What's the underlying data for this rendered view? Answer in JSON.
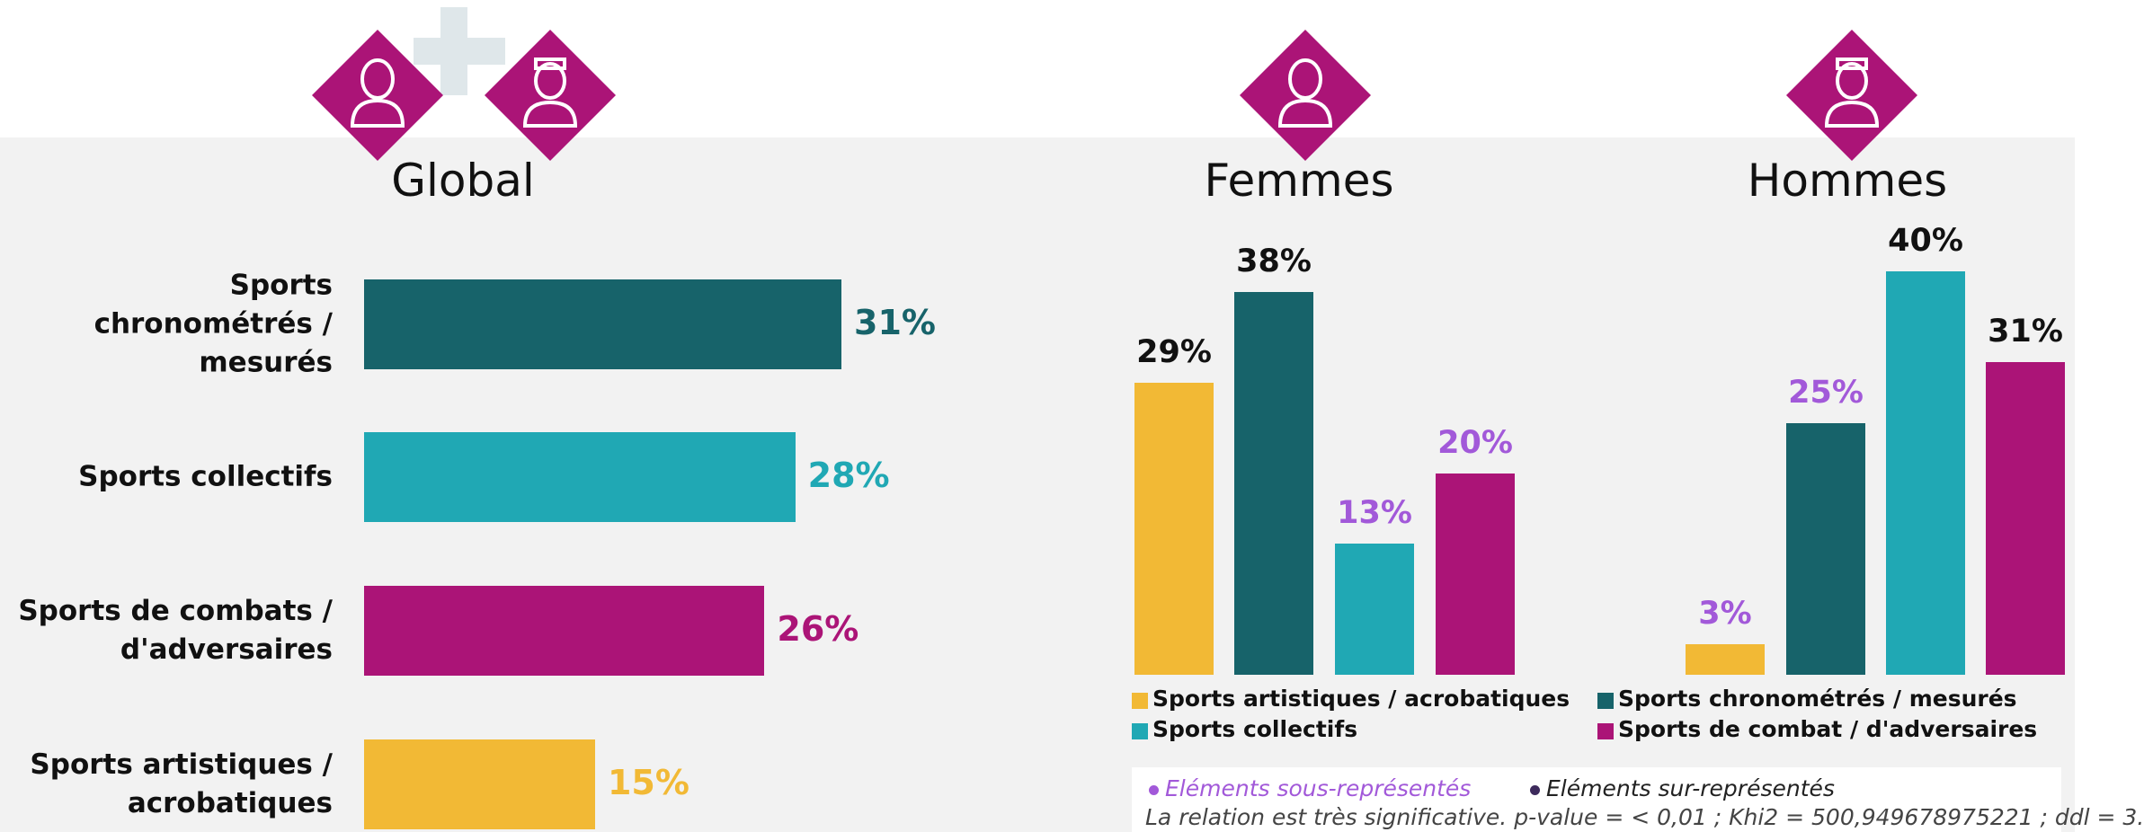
{
  "chart_data": [
    {
      "type": "bar",
      "orientation": "horizontal",
      "title": "Global",
      "categories": [
        "Sports chronométrés / mesurés",
        "Sports collectifs",
        "Sports de combats / d'adversaires",
        "Sports artistiques / acrobatiques"
      ],
      "values": [
        31,
        28,
        26,
        15
      ],
      "value_labels": [
        "31%",
        "28%",
        "26%",
        "15%"
      ],
      "colors": [
        "#17636a",
        "#20a8b4",
        "#ab1477",
        "#f2b935"
      ]
    },
    {
      "type": "bar",
      "title": "Femmes",
      "values": [
        29,
        38,
        13,
        20
      ],
      "value_labels": [
        "29%",
        "38%",
        "13%",
        "20%"
      ],
      "colors": [
        "#f2b935",
        "#17636a",
        "#20a8b4",
        "#ab1477"
      ],
      "value_label_colors": [
        "#111111",
        "#111111",
        "#a259d9",
        "#a259d9"
      ]
    },
    {
      "type": "bar",
      "title": "Hommes",
      "values": [
        3,
        25,
        40,
        31
      ],
      "value_labels": [
        "3%",
        "25%",
        "40%",
        "31%"
      ],
      "colors": [
        "#f2b935",
        "#17636a",
        "#20a8b4",
        "#ab1477"
      ],
      "value_label_colors": [
        "#a259d9",
        "#a259d9",
        "#111111",
        "#111111"
      ]
    }
  ],
  "legend": [
    {
      "name": "Sports artistiques / acrobatiques",
      "color": "#f2b935"
    },
    {
      "name": "Sports collectifs",
      "color": "#20a8b4"
    },
    {
      "name": "Sports chronométrés / mesurés",
      "color": "#17636a"
    },
    {
      "name": "Sports de combat / d'adversaires",
      "color": "#ab1477"
    }
  ],
  "notes": {
    "under": {
      "text": "Eléments sous-représentés",
      "color": "#a259d9"
    },
    "over": {
      "text": "Eléments sur-représentés",
      "color": "#3d2a5c"
    },
    "stat": "La relation est très significative. p-value = < 0,01 ; Khi2 = 500,949678975221 ; ddl = 3."
  }
}
